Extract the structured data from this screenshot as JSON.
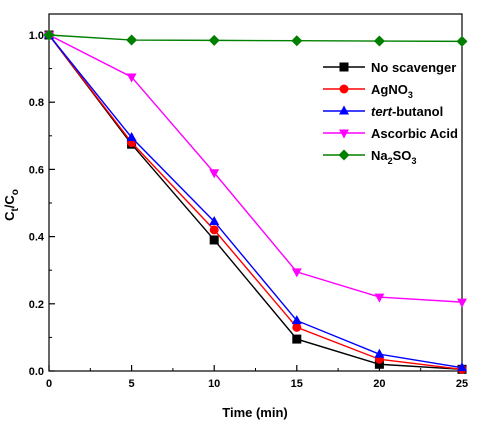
{
  "chart_data": {
    "type": "line",
    "title": "",
    "xlabel": "Time (min)",
    "ylabel": {
      "main": "C",
      "sub1": "t",
      "mid": "/C",
      "sub2": "o"
    },
    "x": [
      0,
      5,
      10,
      15,
      20,
      25
    ],
    "xlim": [
      0,
      25
    ],
    "ylim": [
      0.0,
      1.0
    ],
    "xticks": [
      "0",
      "5",
      "10",
      "15",
      "20",
      "25"
    ],
    "yticks": [
      "0.0",
      "0.2",
      "0.4",
      "0.6",
      "0.8",
      "1.0"
    ],
    "grid": false,
    "legend_position": "top-right",
    "series": [
      {
        "name": "No scavenger",
        "label": {
          "text": "No scavenger"
        },
        "color": "#000000",
        "marker": "square",
        "values": [
          1.0,
          0.675,
          0.39,
          0.095,
          0.02,
          0.005
        ]
      },
      {
        "name": "AgNO3",
        "label": {
          "text": "AgNO",
          "sub": "3"
        },
        "color": "#ff0000",
        "marker": "circle",
        "values": [
          1.0,
          0.68,
          0.42,
          0.13,
          0.035,
          0.005
        ]
      },
      {
        "name": "tert-butanol",
        "label": {
          "italic": "tert",
          "text": "-butanol"
        },
        "color": "#0000ff",
        "marker": "triangle-up",
        "values": [
          1.0,
          0.695,
          0.445,
          0.15,
          0.05,
          0.01
        ]
      },
      {
        "name": "Ascorbic Acid",
        "label": {
          "text": "Ascorbic Acid"
        },
        "color": "#ff00ff",
        "marker": "triangle-down",
        "values": [
          1.0,
          0.875,
          0.59,
          0.295,
          0.22,
          0.205
        ]
      },
      {
        "name": "Na2SO3",
        "label": {
          "text": "Na",
          "sub": "2",
          "text2": "SO",
          "sub2": "3"
        },
        "color": "#008000",
        "marker": "diamond",
        "values": [
          1.0,
          0.985,
          0.984,
          0.983,
          0.982,
          0.981
        ]
      }
    ]
  }
}
